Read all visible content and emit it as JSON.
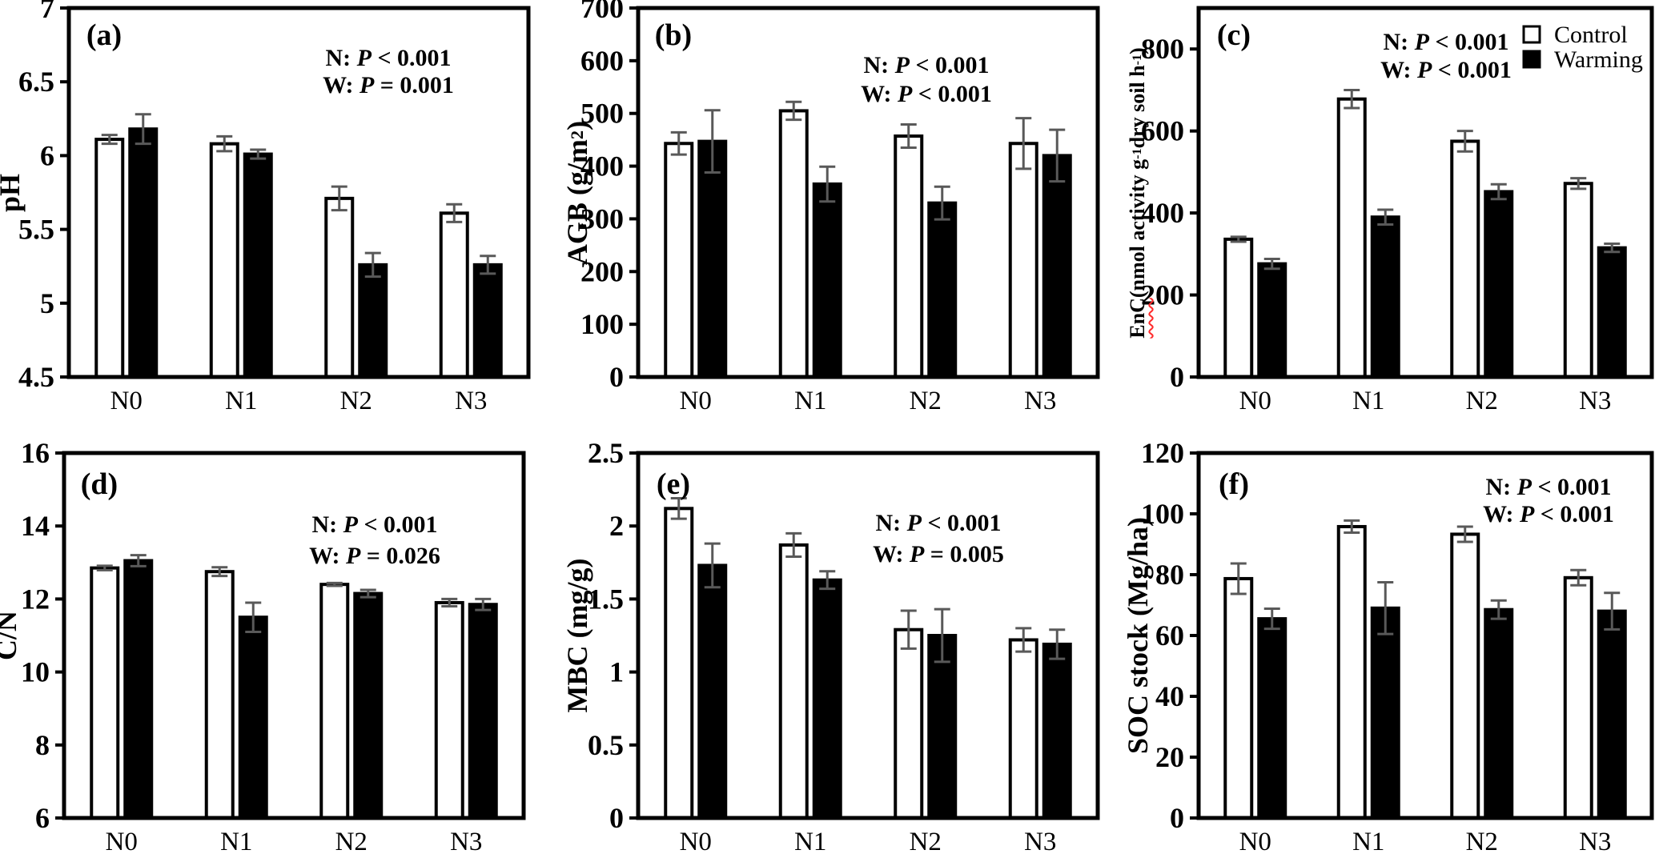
{
  "figure": {
    "background": "#ffffff",
    "colors": {
      "bar_control_fill": "#ffffff",
      "bar_warming_fill": "#000000",
      "bar_stroke": "#000000",
      "error_bar": "#595959",
      "axis": "#000000",
      "text": "#000000",
      "spellcheck_underline": "#ff2a2a"
    },
    "legend": {
      "position": "top-right-panel-c",
      "items": [
        {
          "label": "Control",
          "fill": "#ffffff",
          "marker": "open-square"
        },
        {
          "label": "Warming",
          "fill": "#000000",
          "marker": "filled-square"
        }
      ]
    },
    "p_symbol": "P",
    "categories": [
      "N0",
      "N1",
      "N2",
      "N3"
    ],
    "series_names": [
      "Control",
      "Warming"
    ]
  },
  "chart_data": [
    {
      "id": "a",
      "type": "bar",
      "panel_label": "(a)",
      "ylabel_text": "pH",
      "ylabel_segments": [
        {
          "t": "pH"
        }
      ],
      "ylim": [
        4.5,
        7
      ],
      "yticks": [
        4.5,
        5,
        5.5,
        6,
        6.5,
        7
      ],
      "categories": [
        "N0",
        "N1",
        "N2",
        "N3"
      ],
      "series": [
        {
          "name": "Control",
          "values": [
            6.11,
            6.08,
            5.71,
            5.61
          ],
          "errors": [
            0.03,
            0.05,
            0.08,
            0.06
          ]
        },
        {
          "name": "Warming",
          "values": [
            6.18,
            6.01,
            5.26,
            5.26
          ],
          "errors": [
            0.1,
            0.03,
            0.08,
            0.06
          ]
        }
      ],
      "annotations": [
        {
          "factor": "N",
          "rel": "<",
          "value": "0.001"
        },
        {
          "factor": "W",
          "rel": "=",
          "value": "0.001"
        }
      ],
      "show_legend": false,
      "grid": false
    },
    {
      "id": "b",
      "type": "bar",
      "panel_label": "(b)",
      "ylabel_text": "AGB (g/m2)",
      "ylabel_segments": [
        {
          "t": "AGB (g/m"
        },
        {
          "t": "2",
          "sup": true
        },
        {
          "t": ")"
        }
      ],
      "ylim": [
        0,
        700
      ],
      "yticks": [
        0,
        100,
        200,
        300,
        400,
        500,
        600,
        700
      ],
      "categories": [
        "N0",
        "N1",
        "N2",
        "N3"
      ],
      "series": [
        {
          "name": "Control",
          "values": [
            443,
            505,
            457,
            443
          ],
          "errors": [
            21,
            17,
            22,
            48
          ]
        },
        {
          "name": "Warming",
          "values": [
            447,
            366,
            330,
            420
          ],
          "errors": [
            59,
            33,
            31,
            49
          ]
        }
      ],
      "annotations": [
        {
          "factor": "N",
          "rel": "<",
          "value": "0.001"
        },
        {
          "factor": "W",
          "rel": "<",
          "value": "0.001"
        }
      ],
      "show_legend": false,
      "grid": false
    },
    {
      "id": "c",
      "type": "bar",
      "panel_label": "(c)",
      "ylabel_text": "EnC (nmol activity g-1 dry soil h-1)",
      "ylabel_segments": [
        {
          "t": "EnC",
          "spellcheck_underline": true
        },
        {
          "t": " (nmol activity g"
        },
        {
          "t": "-1",
          "sup": true
        },
        {
          "t": " dry soil h"
        },
        {
          "t": "-1",
          "sup": true
        },
        {
          "t": ")"
        }
      ],
      "ylim": [
        0,
        900
      ],
      "yticks": [
        0,
        200,
        400,
        600,
        800
      ],
      "categories": [
        "N0",
        "N1",
        "N2",
        "N3"
      ],
      "series": [
        {
          "name": "Control",
          "values": [
            336,
            678,
            575,
            472
          ],
          "errors": [
            6,
            22,
            25,
            13
          ]
        },
        {
          "name": "Warming",
          "values": [
            276,
            390,
            452,
            315
          ],
          "errors": [
            12,
            18,
            18,
            10
          ]
        }
      ],
      "annotations": [
        {
          "factor": "N",
          "rel": "<",
          "value": "0.001"
        },
        {
          "factor": "W",
          "rel": "<",
          "value": "0.001"
        }
      ],
      "show_legend": true,
      "grid": false
    },
    {
      "id": "d",
      "type": "bar",
      "panel_label": "(d)",
      "ylabel_text": "C/N",
      "ylabel_segments": [
        {
          "t": "C/N"
        }
      ],
      "ylim": [
        6,
        16
      ],
      "yticks": [
        6,
        8,
        10,
        12,
        14,
        16
      ],
      "categories": [
        "N0",
        "N1",
        "N2",
        "N3"
      ],
      "series": [
        {
          "name": "Control",
          "values": [
            12.85,
            12.75,
            12.4,
            11.9
          ],
          "errors": [
            0.06,
            0.12,
            0.04,
            0.1
          ]
        },
        {
          "name": "Warming",
          "values": [
            13.05,
            11.5,
            12.15,
            11.85
          ],
          "errors": [
            0.15,
            0.4,
            0.1,
            0.15
          ]
        }
      ],
      "annotations": [
        {
          "factor": "N",
          "rel": "<",
          "value": "0.001"
        },
        {
          "factor": "W",
          "rel": "=",
          "value": "0.026"
        }
      ],
      "show_legend": false,
      "grid": false
    },
    {
      "id": "e",
      "type": "bar",
      "panel_label": "(e)",
      "ylabel_text": "MBC (mg/g)",
      "ylabel_segments": [
        {
          "t": "MBC (mg/g)"
        }
      ],
      "ylim": [
        0,
        2.5
      ],
      "yticks": [
        0,
        0.5,
        1,
        1.5,
        2,
        2.5
      ],
      "categories": [
        "N0",
        "N1",
        "N2",
        "N3"
      ],
      "series": [
        {
          "name": "Control",
          "values": [
            2.12,
            1.87,
            1.29,
            1.22
          ],
          "errors": [
            0.07,
            0.08,
            0.13,
            0.08
          ]
        },
        {
          "name": "Warming",
          "values": [
            1.73,
            1.63,
            1.25,
            1.19
          ],
          "errors": [
            0.15,
            0.06,
            0.18,
            0.1
          ]
        }
      ],
      "annotations": [
        {
          "factor": "N",
          "rel": "<",
          "value": "0.001"
        },
        {
          "factor": "W",
          "rel": "=",
          "value": "0.005"
        }
      ],
      "show_legend": false,
      "grid": false
    },
    {
      "id": "f",
      "type": "bar",
      "panel_label": "(f)",
      "ylabel_text": "SOC stock (Mg/ha)",
      "ylabel_segments": [
        {
          "t": "SOC stock (Mg/ha)"
        }
      ],
      "ylim": [
        0,
        120
      ],
      "yticks": [
        0,
        20,
        40,
        60,
        80,
        100,
        120
      ],
      "categories": [
        "N0",
        "N1",
        "N2",
        "N3"
      ],
      "series": [
        {
          "name": "Control",
          "values": [
            78.7,
            95.8,
            93.3,
            79
          ],
          "errors": [
            5,
            2,
            2.5,
            2.5
          ]
        },
        {
          "name": "Warming",
          "values": [
            65.5,
            69,
            68.5,
            68
          ],
          "errors": [
            3.3,
            8.5,
            3,
            6
          ]
        }
      ],
      "annotations": [
        {
          "factor": "N",
          "rel": "<",
          "value": "0.001"
        },
        {
          "factor": "W",
          "rel": "<",
          "value": "0.001"
        }
      ],
      "show_legend": false,
      "grid": false
    }
  ]
}
